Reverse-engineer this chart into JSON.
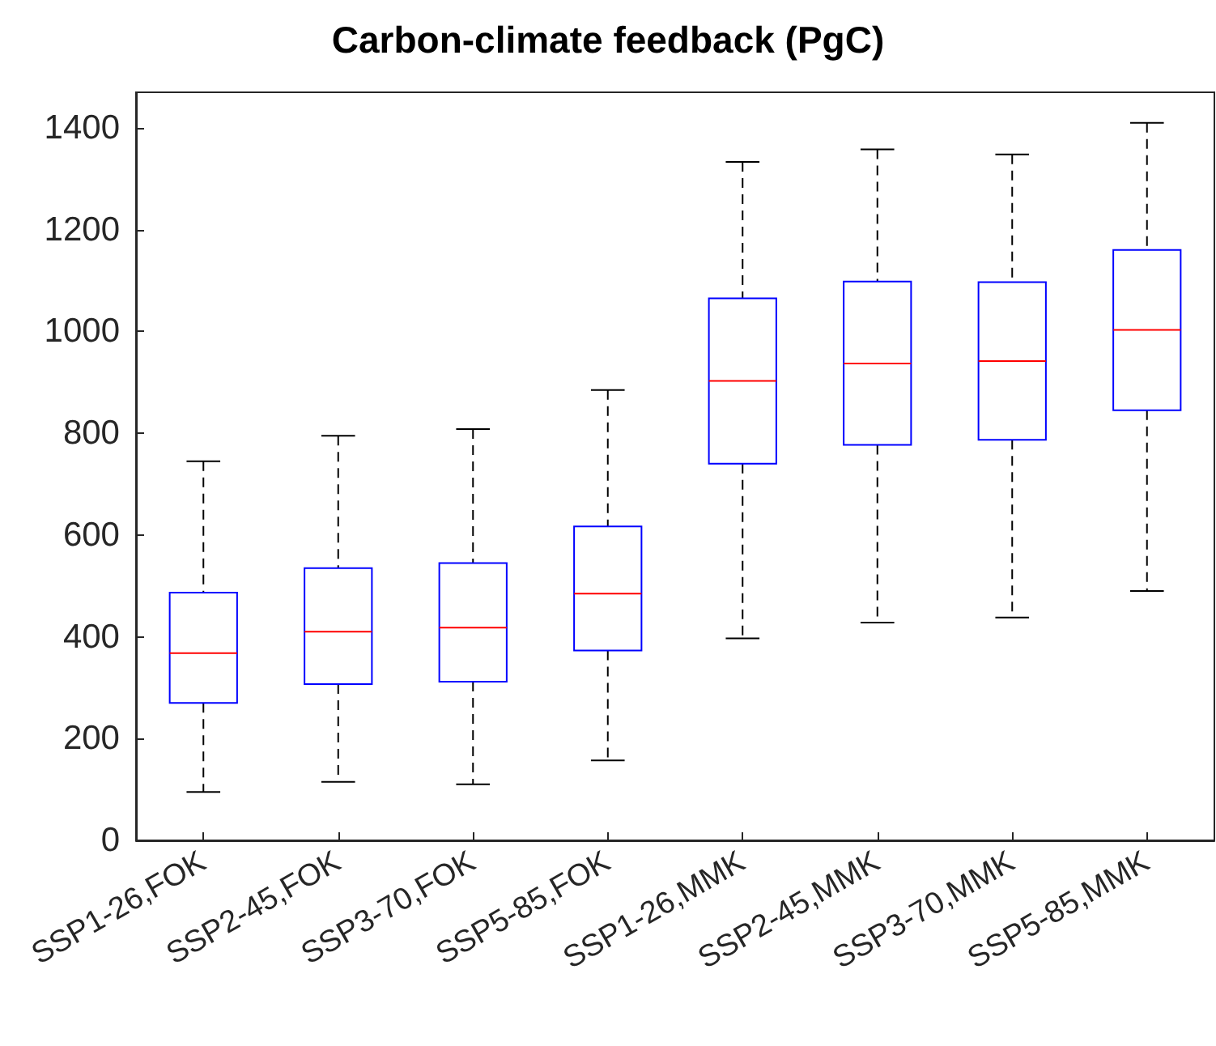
{
  "chart_data": {
    "type": "box",
    "title": "Carbon-climate feedback (PgC)",
    "color": "#0000ff",
    "categories": [
      "SSP1-26,FOK",
      "SSP2-45,FOK",
      "SSP3-70,FOK",
      "SSP5-85,FOK",
      "SSP1-26,MMK",
      "SSP2-45,MMK",
      "SSP3-70,MMK",
      "SSP5-85,MMK"
    ],
    "boxes": [
      {
        "low": 95,
        "q1": 270,
        "median": 368,
        "q3": 487,
        "high": 745
      },
      {
        "low": 115,
        "q1": 307,
        "median": 410,
        "q3": 535,
        "high": 795
      },
      {
        "low": 110,
        "q1": 312,
        "median": 418,
        "q3": 545,
        "high": 808
      },
      {
        "low": 157,
        "q1": 373,
        "median": 485,
        "q3": 617,
        "high": 885
      },
      {
        "low": 397,
        "q1": 740,
        "median": 903,
        "q3": 1065,
        "high": 1333
      },
      {
        "low": 428,
        "q1": 777,
        "median": 937,
        "q3": 1098,
        "high": 1358
      },
      {
        "low": 438,
        "q1": 787,
        "median": 942,
        "q3": 1097,
        "high": 1348
      },
      {
        "low": 490,
        "q1": 845,
        "median": 1003,
        "q3": 1160,
        "high": 1410
      }
    ],
    "ylim": [
      0,
      1470
    ],
    "yticks": [
      0,
      200,
      400,
      600,
      800,
      1000,
      1200,
      1400
    ],
    "grid": false
  }
}
